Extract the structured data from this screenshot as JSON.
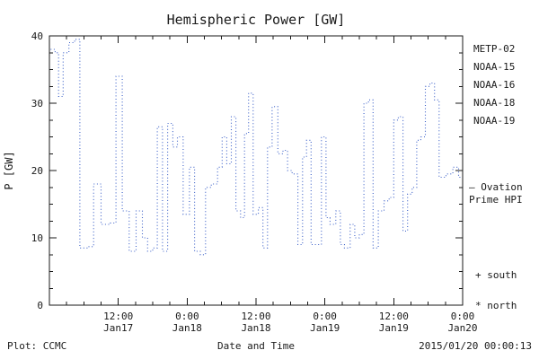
{
  "footer": {
    "plot_credit": "Plot: CCMC",
    "timestamp": "2015/01/20 00:00:13"
  },
  "chart_data": {
    "type": "line",
    "title": "Hemispheric Power [GW]",
    "xlabel": "Date and Time",
    "ylabel": "P [GW]",
    "ylim": [
      0,
      40
    ],
    "xlim_hours": [
      0,
      72
    ],
    "x_start": "2015-01-17 00:00",
    "grid": false,
    "legend_position": "right",
    "y_ticks": [
      "0",
      "10",
      "20",
      "30",
      "40"
    ],
    "y_tick_values": [
      0,
      10,
      20,
      30,
      40
    ],
    "y_minor_step": 2.5,
    "x_minor_step": 3,
    "x_ticks": [
      {
        "hour": 12,
        "time": "12:00",
        "date": "Jan17"
      },
      {
        "hour": 24,
        "time": "0:00",
        "date": "Jan18"
      },
      {
        "hour": 36,
        "time": "12:00",
        "date": "Jan18"
      },
      {
        "hour": 48,
        "time": "0:00",
        "date": "Jan19"
      },
      {
        "hour": 60,
        "time": "12:00",
        "date": "Jan19"
      },
      {
        "hour": 72,
        "time": "0:00",
        "date": "Jan20"
      }
    ],
    "series": [
      {
        "name": "NOAA-15",
        "color": "#3a5fc8",
        "style": "dotted",
        "points": [
          [
            0.2,
            38
          ],
          [
            1.0,
            37.5
          ],
          [
            1.6,
            31
          ],
          [
            2.4,
            37.5
          ],
          [
            3.4,
            39
          ],
          [
            4.4,
            39.5
          ],
          [
            5.3,
            8.5
          ],
          [
            6.8,
            8.7
          ],
          [
            7.7,
            18
          ],
          [
            9.0,
            12
          ],
          [
            10.6,
            12.2
          ],
          [
            11.6,
            34
          ],
          [
            12.7,
            14
          ],
          [
            13.9,
            8
          ],
          [
            15.1,
            14
          ],
          [
            16.2,
            10
          ],
          [
            17.1,
            8
          ],
          [
            18.0,
            8.5
          ],
          [
            18.8,
            26.5
          ],
          [
            19.7,
            8
          ],
          [
            20.6,
            27
          ],
          [
            21.5,
            23.5
          ],
          [
            22.3,
            25
          ],
          [
            23.3,
            13.5
          ],
          [
            24.4,
            20.5
          ],
          [
            25.3,
            8
          ],
          [
            26.3,
            7.5
          ],
          [
            27.2,
            17.5
          ],
          [
            28.2,
            18
          ],
          [
            29.3,
            20.5
          ],
          [
            30.1,
            25
          ],
          [
            30.9,
            21
          ],
          [
            31.7,
            28
          ],
          [
            32.5,
            14
          ],
          [
            33.3,
            13
          ],
          [
            34.0,
            25.5
          ],
          [
            34.7,
            31.5
          ],
          [
            35.5,
            13.5
          ],
          [
            36.4,
            14.5
          ],
          [
            37.2,
            8.5
          ],
          [
            38.0,
            23.5
          ],
          [
            38.8,
            29.5
          ],
          [
            39.8,
            22.5
          ],
          [
            40.7,
            23
          ],
          [
            41.5,
            20
          ],
          [
            42.3,
            19.5
          ],
          [
            43.3,
            9
          ],
          [
            44.1,
            22
          ],
          [
            44.8,
            24.5
          ],
          [
            45.6,
            9
          ],
          [
            46.6,
            9
          ],
          [
            47.4,
            25
          ],
          [
            48.2,
            13
          ],
          [
            48.9,
            12
          ],
          [
            49.9,
            14
          ],
          [
            50.7,
            9
          ],
          [
            51.4,
            8.5
          ],
          [
            52.4,
            12
          ],
          [
            53.2,
            10
          ],
          [
            54.0,
            10.5
          ],
          [
            54.8,
            30
          ],
          [
            55.6,
            30.5
          ],
          [
            56.4,
            8.5
          ],
          [
            57.3,
            14
          ],
          [
            58.3,
            15.5
          ],
          [
            59.2,
            16
          ],
          [
            60.0,
            27.5
          ],
          [
            60.8,
            28
          ],
          [
            61.6,
            11
          ],
          [
            62.4,
            16.5
          ],
          [
            63.2,
            17.5
          ],
          [
            64.0,
            24.5
          ],
          [
            64.7,
            25
          ],
          [
            65.5,
            32.5
          ],
          [
            66.3,
            33
          ],
          [
            67.1,
            30.5
          ],
          [
            67.9,
            19
          ],
          [
            69.1,
            19.5
          ],
          [
            70.3,
            20.5
          ],
          [
            71.3,
            19
          ],
          [
            72.0,
            19
          ]
        ]
      }
    ],
    "legend": [
      {
        "label": "METP-02",
        "color": "#333333"
      },
      {
        "label": "NOAA-15",
        "color": "#3a5fc8"
      },
      {
        "label": "NOAA-16",
        "color": "#33bbcc"
      },
      {
        "label": "NOAA-18",
        "color": "#66cc99"
      },
      {
        "label": "NOAA-19",
        "color": "#dd9933"
      }
    ],
    "annotations": {
      "ovation_line1": "– Ovation",
      "ovation_line2": "Prime HPI",
      "ovation_color": "#3a5fc8",
      "south": "+ south",
      "north": "* north"
    }
  }
}
